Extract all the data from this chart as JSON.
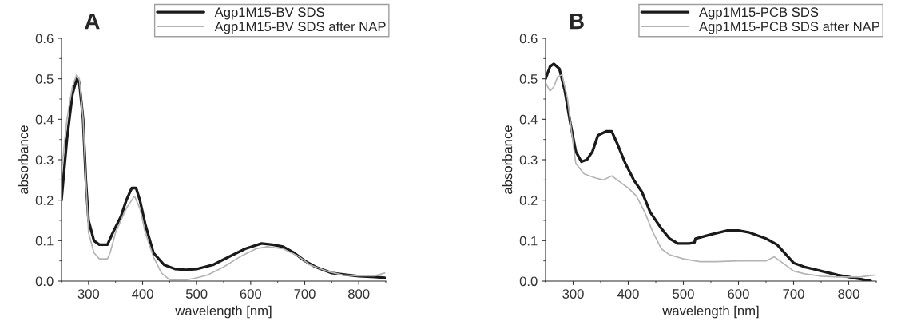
{
  "chart_data": [
    {
      "type": "line",
      "title": "A",
      "xlabel": "wavelength [nm]",
      "ylabel": "absorbance",
      "xlim": [
        250,
        850
      ],
      "ylim": [
        0,
        0.6
      ],
      "xticks": [
        300,
        400,
        500,
        600,
        700,
        800
      ],
      "yticks": [
        {
          "value": 0,
          "label": "0.0"
        },
        0.1,
        0.2,
        0.3,
        0.4,
        0.5,
        0.6
      ],
      "legend": "top right",
      "grid": false,
      "series": [
        {
          "name": "Agp1M15-BV SDS",
          "color": "#1a1a1a",
          "x": [
            250,
            260,
            270,
            278,
            283,
            290,
            295,
            300,
            310,
            320,
            335,
            345,
            360,
            370,
            380,
            388,
            395,
            405,
            420,
            440,
            460,
            480,
            500,
            530,
            560,
            590,
            620,
            640,
            660,
            680,
            700,
            720,
            750,
            780,
            800,
            830,
            848
          ],
          "values": [
            0.2,
            0.35,
            0.46,
            0.5,
            0.49,
            0.4,
            0.25,
            0.15,
            0.1,
            0.09,
            0.09,
            0.12,
            0.16,
            0.2,
            0.23,
            0.23,
            0.2,
            0.14,
            0.07,
            0.04,
            0.03,
            0.028,
            0.03,
            0.04,
            0.06,
            0.08,
            0.093,
            0.09,
            0.085,
            0.07,
            0.05,
            0.035,
            0.02,
            0.015,
            0.012,
            0.01,
            0.008
          ]
        },
        {
          "name": "Agp1M15-BV SDS after NAP",
          "color": "#b4b4b4",
          "x": [
            250,
            260,
            270,
            278,
            283,
            290,
            295,
            300,
            310,
            320,
            335,
            340,
            350,
            360,
            370,
            385,
            395,
            405,
            420,
            435,
            450,
            480,
            500,
            520,
            550,
            580,
            610,
            630,
            660,
            690,
            710,
            740,
            770,
            800,
            830,
            848
          ],
          "values": [
            0.27,
            0.4,
            0.48,
            0.51,
            0.5,
            0.4,
            0.25,
            0.12,
            0.07,
            0.055,
            0.055,
            0.07,
            0.12,
            0.15,
            0.18,
            0.21,
            0.18,
            0.12,
            0.06,
            0.02,
            0.003,
            0.003,
            0.008,
            0.015,
            0.035,
            0.06,
            0.08,
            0.085,
            0.08,
            0.06,
            0.04,
            0.025,
            0.015,
            0.013,
            0.013,
            0.02
          ]
        }
      ]
    },
    {
      "type": "line",
      "title": "B",
      "xlabel": "wavelength [nm]",
      "ylabel": "absorbance",
      "xlim": [
        250,
        850
      ],
      "ylim": [
        0,
        0.6
      ],
      "xticks": [
        300,
        400,
        500,
        600,
        700,
        800
      ],
      "yticks": [
        {
          "value": 0,
          "label": "0.0"
        },
        0.1,
        0.2,
        0.3,
        0.4,
        0.5,
        0.6
      ],
      "legend": "top right",
      "grid": false,
      "series": [
        {
          "name": "Agp1M15-PCB SDS",
          "color": "#1a1a1a",
          "x": [
            250,
            258,
            265,
            275,
            285,
            295,
            305,
            315,
            325,
            335,
            345,
            360,
            370,
            380,
            395,
            410,
            425,
            440,
            460,
            475,
            490,
            510,
            520,
            522,
            550,
            580,
            600,
            620,
            650,
            670,
            690,
            700,
            720,
            750,
            780,
            800,
            820,
            840
          ],
          "values": [
            0.5,
            0.53,
            0.537,
            0.525,
            0.47,
            0.39,
            0.32,
            0.295,
            0.3,
            0.32,
            0.36,
            0.37,
            0.37,
            0.34,
            0.29,
            0.25,
            0.22,
            0.17,
            0.13,
            0.105,
            0.093,
            0.093,
            0.095,
            0.105,
            0.115,
            0.125,
            0.125,
            0.12,
            0.105,
            0.09,
            0.06,
            0.045,
            0.035,
            0.025,
            0.015,
            0.01,
            0.005,
            0.0
          ]
        },
        {
          "name": "Agp1M15-PCB SDS after NAP",
          "color": "#b4b4b4",
          "x": [
            250,
            258,
            265,
            272,
            280,
            290,
            297,
            305,
            320,
            340,
            355,
            370,
            385,
            400,
            415,
            430,
            445,
            460,
            475,
            500,
            530,
            560,
            600,
            630,
            650,
            665,
            680,
            700,
            720,
            750,
            780,
            820,
            848
          ],
          "values": [
            0.49,
            0.47,
            0.48,
            0.505,
            0.51,
            0.45,
            0.37,
            0.29,
            0.265,
            0.255,
            0.25,
            0.26,
            0.245,
            0.23,
            0.21,
            0.17,
            0.12,
            0.08,
            0.065,
            0.055,
            0.048,
            0.048,
            0.05,
            0.05,
            0.05,
            0.06,
            0.045,
            0.025,
            0.018,
            0.012,
            0.01,
            0.01,
            0.015
          ]
        }
      ]
    }
  ]
}
